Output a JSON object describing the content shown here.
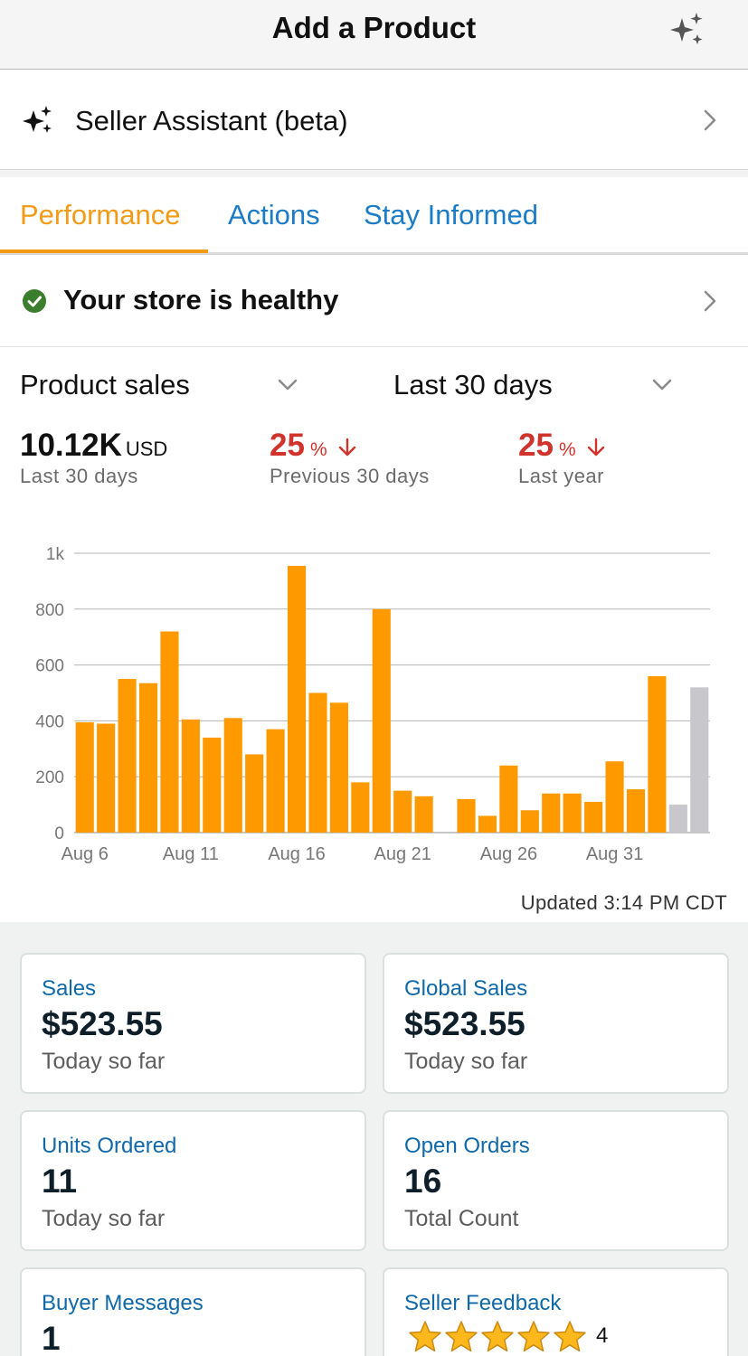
{
  "header": {
    "title": "Add a Product",
    "sparkle_icon": "sparkle-icon"
  },
  "assistant": {
    "label": "Seller Assistant (beta)"
  },
  "tabs": [
    {
      "label": "Performance",
      "active": true
    },
    {
      "label": "Actions",
      "active": false
    },
    {
      "label": "Stay Informed",
      "active": false
    }
  ],
  "health": {
    "label": "Your store is healthy",
    "status_color": "#3a7d2c"
  },
  "selectors": {
    "metric": "Product sales",
    "range": "Last 30 days"
  },
  "metrics": {
    "current": {
      "value": "10.12K",
      "unit": "USD",
      "sub": "Last 30 days"
    },
    "previous": {
      "value": "25",
      "unit": "%",
      "sub": "Previous 30 days",
      "direction": "down"
    },
    "last_year": {
      "value": "25",
      "unit": "%",
      "sub": "Last year",
      "direction": "down"
    }
  },
  "chart_data": {
    "type": "bar",
    "categories": [
      "Aug 6",
      "Aug 7",
      "Aug 8",
      "Aug 9",
      "Aug 10",
      "Aug 11",
      "Aug 12",
      "Aug 13",
      "Aug 14",
      "Aug 15",
      "Aug 16",
      "Aug 17",
      "Aug 18",
      "Aug 19",
      "Aug 20",
      "Aug 21",
      "Aug 22",
      "Aug 23",
      "Aug 24",
      "Aug 25",
      "Aug 26",
      "Aug 27",
      "Aug 28",
      "Aug 29",
      "Aug 30",
      "Aug 31",
      "Sep 1",
      "Sep 2",
      "Sep 3",
      "Sep 4"
    ],
    "series": [
      {
        "color": "#ff9900",
        "values": [
          395,
          390,
          550,
          535,
          720,
          405,
          340,
          410,
          280,
          370,
          955,
          500,
          465,
          180,
          800,
          150,
          130,
          0,
          120,
          60,
          240,
          80,
          140,
          140,
          110,
          255,
          155,
          560,
          null,
          null
        ]
      },
      {
        "color": "#c8c8cc",
        "values": [
          null,
          null,
          null,
          null,
          null,
          null,
          null,
          null,
          null,
          null,
          null,
          null,
          null,
          null,
          null,
          null,
          null,
          null,
          null,
          null,
          null,
          null,
          null,
          null,
          null,
          null,
          null,
          null,
          100,
          520
        ]
      }
    ],
    "xticks": [
      "Aug 6",
      "Aug 11",
      "Aug 16",
      "Aug 21",
      "Aug 26",
      "Aug 31"
    ],
    "yticks": [
      "0",
      "200",
      "400",
      "600",
      "800",
      "1k"
    ],
    "ylim": [
      0,
      1000
    ],
    "grid": true,
    "title": "",
    "xlabel": "",
    "ylabel": ""
  },
  "updated": "Updated 3:14 PM CDT",
  "cards": [
    {
      "title": "Sales",
      "value": "$523.55",
      "sub": "Today so far"
    },
    {
      "title": "Global Sales",
      "value": "$523.55",
      "sub": "Today so far"
    },
    {
      "title": "Units Ordered",
      "value": "11",
      "sub": "Today so far"
    },
    {
      "title": "Open Orders",
      "value": "16",
      "sub": "Total Count"
    },
    {
      "title": "Buyer Messages",
      "value": "1"
    },
    {
      "title": "Seller Feedback",
      "rating": 5,
      "count": "4"
    }
  ],
  "colors": {
    "accent": "#ff9900",
    "link": "#1a7bc6",
    "negative": "#d0322c"
  }
}
